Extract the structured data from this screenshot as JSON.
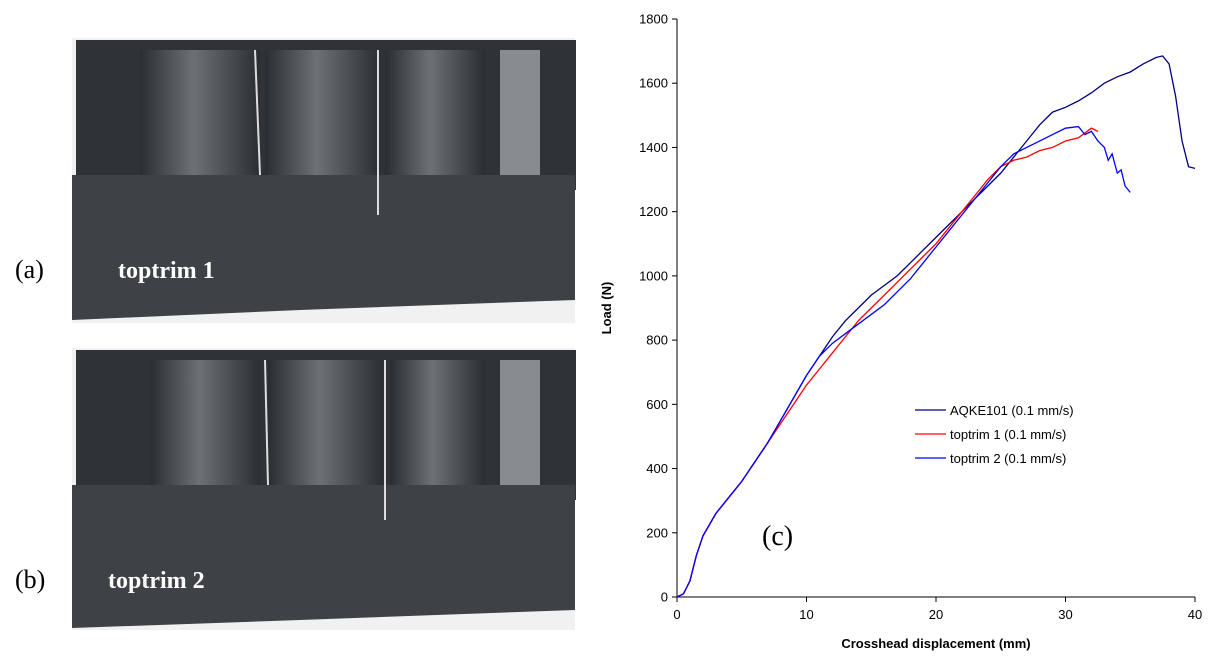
{
  "panels": [
    {
      "label": "(a)",
      "caption": "toptrim 1"
    },
    {
      "label": "(b)",
      "caption": "toptrim 2"
    }
  ],
  "chart_data": {
    "type": "line",
    "annotation": "(c)",
    "x_label": "Crosshead displacement (mm)",
    "y_label": "Load (N)",
    "xlim": [
      0,
      40
    ],
    "xticks": [
      0,
      10,
      20,
      30,
      40
    ],
    "ylim": [
      0,
      1800
    ],
    "yticks": [
      0,
      200,
      400,
      600,
      800,
      1000,
      1200,
      1400,
      1600,
      1800
    ],
    "series": [
      {
        "name": "AQKE101 (0.1 mm/s)",
        "color": "#000080",
        "x": [
          0,
          0.5,
          1,
          1.5,
          2,
          3,
          4,
          5,
          6,
          7,
          8,
          9,
          10,
          11,
          12,
          13,
          14,
          15,
          16,
          17,
          18,
          19,
          20,
          21,
          22,
          23,
          24,
          25,
          26,
          27,
          28,
          29,
          30,
          31,
          32,
          33,
          34,
          35,
          36,
          37,
          37.5,
          38,
          38.5,
          39,
          39.5,
          40
        ],
        "values": [
          0,
          10,
          50,
          130,
          190,
          260,
          310,
          360,
          420,
          480,
          550,
          620,
          690,
          750,
          810,
          860,
          900,
          940,
          970,
          1000,
          1040,
          1080,
          1120,
          1160,
          1200,
          1240,
          1280,
          1320,
          1370,
          1420,
          1470,
          1510,
          1525,
          1545,
          1570,
          1600,
          1620,
          1635,
          1660,
          1680,
          1685,
          1660,
          1560,
          1420,
          1340,
          1335
        ]
      },
      {
        "name": "toptrim 1 (0.1 mm/s)",
        "color": "#ff0000",
        "x": [
          0,
          0.5,
          1,
          1.5,
          2,
          3,
          4,
          5,
          6,
          7,
          8,
          9,
          10,
          11,
          12,
          13,
          14,
          15,
          16,
          17,
          18,
          19,
          20,
          21,
          22,
          23,
          24,
          25,
          26,
          27,
          28,
          29,
          30,
          31,
          32,
          32.5
        ],
        "values": [
          0,
          10,
          50,
          130,
          190,
          260,
          310,
          360,
          420,
          480,
          540,
          600,
          660,
          710,
          760,
          810,
          860,
          900,
          940,
          980,
          1020,
          1060,
          1100,
          1150,
          1200,
          1250,
          1300,
          1340,
          1360,
          1370,
          1390,
          1400,
          1420,
          1430,
          1460,
          1450
        ]
      },
      {
        "name": "toptrim 2 (0.1 mm/s)",
        "color": "#0000ff",
        "x": [
          0,
          0.5,
          1,
          1.5,
          2,
          3,
          4,
          5,
          6,
          7,
          8,
          9,
          10,
          11,
          12,
          13,
          14,
          15,
          16,
          17,
          18,
          19,
          20,
          21,
          22,
          23,
          24,
          25,
          26,
          27,
          28,
          29,
          30,
          31,
          31.5,
          32,
          32.5,
          33,
          33.3,
          33.6,
          34,
          34.3,
          34.6,
          35
        ],
        "values": [
          0,
          10,
          50,
          130,
          190,
          260,
          310,
          360,
          420,
          480,
          550,
          620,
          690,
          750,
          790,
          820,
          850,
          880,
          910,
          950,
          990,
          1040,
          1090,
          1140,
          1190,
          1240,
          1290,
          1340,
          1380,
          1400,
          1420,
          1440,
          1460,
          1465,
          1440,
          1450,
          1420,
          1400,
          1360,
          1380,
          1320,
          1330,
          1280,
          1260
        ]
      }
    ]
  }
}
